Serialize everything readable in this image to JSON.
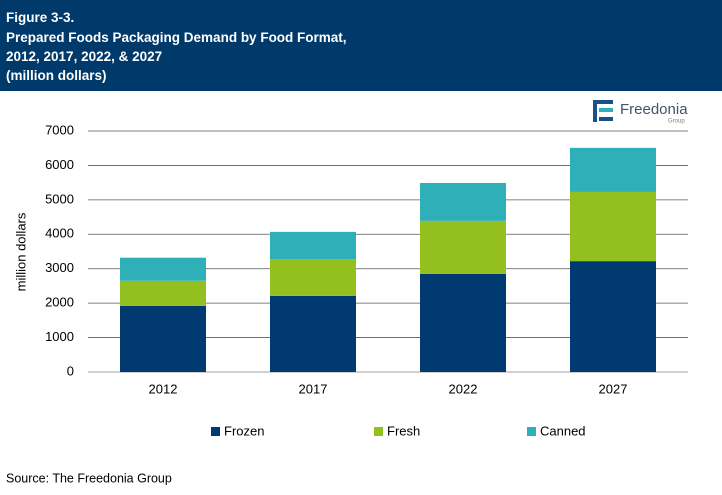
{
  "header": {
    "lines": [
      "Figure 3-3.",
      "Prepared Foods Packaging Demand by Food Format,",
      "2012, 2017, 2022, & 2027",
      "(million dollars)"
    ]
  },
  "logo": {
    "name": "Freedonia",
    "sub": "Group"
  },
  "chart_data": {
    "type": "stacked-bar",
    "y_label": "million dollars",
    "categories": [
      "2012",
      "2017",
      "2022",
      "2027"
    ],
    "series": [
      {
        "name": "Frozen",
        "color": "#003a70",
        "values": [
          1920,
          2210,
          2850,
          3220
        ]
      },
      {
        "name": "Fresh",
        "color": "#93c01f",
        "values": [
          730,
          1070,
          1540,
          2010
        ]
      },
      {
        "name": "Canned",
        "color": "#2fb0b9",
        "values": [
          670,
          790,
          1100,
          1280
        ]
      }
    ],
    "ylim": [
      0,
      7000
    ],
    "yticks": [
      0,
      1000,
      2000,
      3000,
      4000,
      5000,
      6000,
      7000
    ],
    "grid": true
  },
  "source": "Source: The Freedonia Group"
}
